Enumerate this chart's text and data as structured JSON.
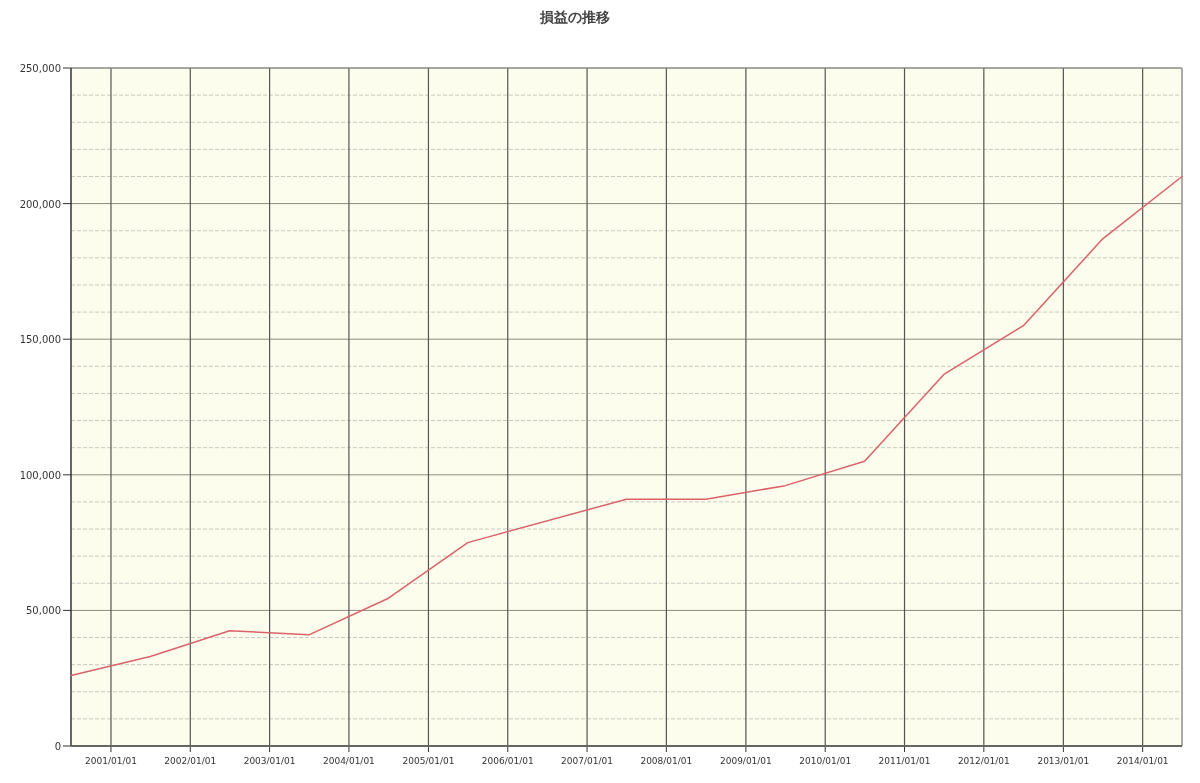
{
  "chart_data": {
    "type": "line",
    "title": "損益の推移",
    "x": [
      "2000-07",
      "2001-07",
      "2002-07",
      "2003-07",
      "2004-07",
      "2005-07",
      "2007-07",
      "2008-07",
      "2009-07",
      "2010-07",
      "2011-07",
      "2012-07",
      "2013-07",
      "2014-07"
    ],
    "series": [
      {
        "color": "#d9626b",
        "values": [
          26000,
          33000,
          42500,
          41000,
          54500,
          75000,
          91000,
          91000,
          96000,
          105000,
          137000,
          155000,
          187000,
          210000
        ]
      }
    ],
    "xlim": [
      "2000-07",
      "2014-07"
    ],
    "xticks": [
      {
        "value": "2001-01-01",
        "label": "2001/01/01"
      },
      {
        "value": "2002-01-01",
        "label": "2002/01/01"
      },
      {
        "value": "2003-01-01",
        "label": "2003/01/01"
      },
      {
        "value": "2004-01-01",
        "label": "2004/01/01"
      },
      {
        "value": "2005-01-01",
        "label": "2005/01/01"
      },
      {
        "value": "2006-01-01",
        "label": "2006/01/01"
      },
      {
        "value": "2007-01-01",
        "label": "2007/01/01"
      },
      {
        "value": "2008-01-01",
        "label": "2008/01/01"
      },
      {
        "value": "2009-01-01",
        "label": "2009/01/01"
      },
      {
        "value": "2010-01-01",
        "label": "2010/01/01"
      },
      {
        "value": "2011-01-01",
        "label": "2011/01/01"
      },
      {
        "value": "2012-01-01",
        "label": "2012/01/01"
      },
      {
        "value": "2013-01-01",
        "label": "2013/01/01"
      },
      {
        "value": "2014-01-01",
        "label": "2014/01/01"
      }
    ],
    "ylim": [
      0,
      250000
    ],
    "yticks": [
      {
        "value": 0,
        "label": "0"
      },
      {
        "value": 10000,
        "label": null
      },
      {
        "value": 20000,
        "label": null
      },
      {
        "value": 30000,
        "label": null
      },
      {
        "value": 40000,
        "label": null
      },
      {
        "value": 50000,
        "label": "50,000"
      },
      {
        "value": 60000,
        "label": null
      },
      {
        "value": 70000,
        "label": null
      },
      {
        "value": 80000,
        "label": null
      },
      {
        "value": 90000,
        "label": null
      },
      {
        "value": 100000,
        "label": "100,000"
      },
      {
        "value": 110000,
        "label": null
      },
      {
        "value": 120000,
        "label": null
      },
      {
        "value": 130000,
        "label": null
      },
      {
        "value": 140000,
        "label": null
      },
      {
        "value": 150000,
        "label": "150,000"
      },
      {
        "value": 160000,
        "label": null
      },
      {
        "value": 170000,
        "label": null
      },
      {
        "value": 180000,
        "label": null
      },
      {
        "value": 190000,
        "label": null
      },
      {
        "value": 200000,
        "label": "200,000"
      },
      {
        "value": 210000,
        "label": null
      },
      {
        "value": 220000,
        "label": null
      },
      {
        "value": 230000,
        "label": null
      },
      {
        "value": 240000,
        "label": null
      },
      {
        "value": 250000,
        "label": "250,000"
      }
    ],
    "grid": true,
    "marker": "none",
    "line_style": "solid"
  }
}
